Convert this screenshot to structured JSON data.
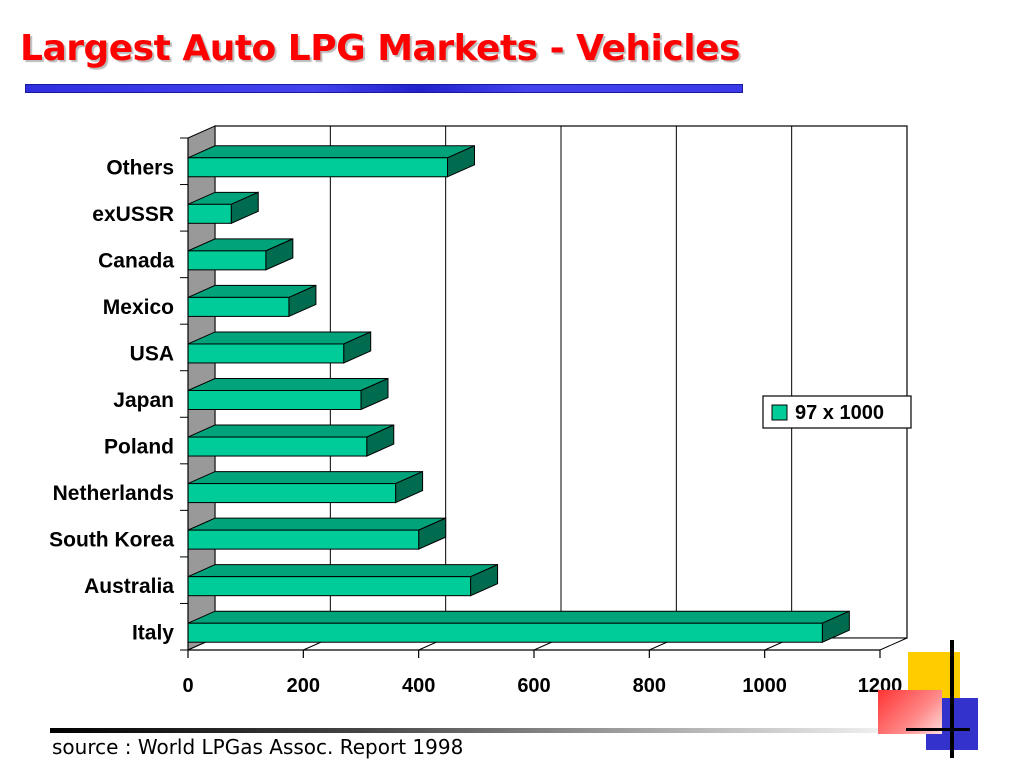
{
  "title": "Largest Auto LPG Markets - Vehicles",
  "source": "source : World LPGas Assoc. Report 1998",
  "colors": {
    "title": "#ff0000",
    "bar_front": "#00cc99",
    "bar_top": "#00a37a",
    "bar_side": "#006b4e",
    "wall": "#999999"
  },
  "chart_data": {
    "type": "bar",
    "orientation": "horizontal",
    "three_d": true,
    "categories": [
      "Italy",
      "Australia",
      "South Korea",
      "Netherlands",
      "Poland",
      "Japan",
      "USA",
      "Mexico",
      "Canada",
      "exUSSR",
      "Others"
    ],
    "series": [
      {
        "name": "97 x 1000",
        "values": [
          1100,
          490,
          400,
          360,
          310,
          300,
          270,
          175,
          135,
          75,
          450
        ]
      }
    ],
    "xlim": [
      0,
      1200
    ],
    "xticks": [
      0,
      200,
      400,
      600,
      800,
      1000,
      1200
    ],
    "grid": true,
    "legend_position": "right"
  }
}
